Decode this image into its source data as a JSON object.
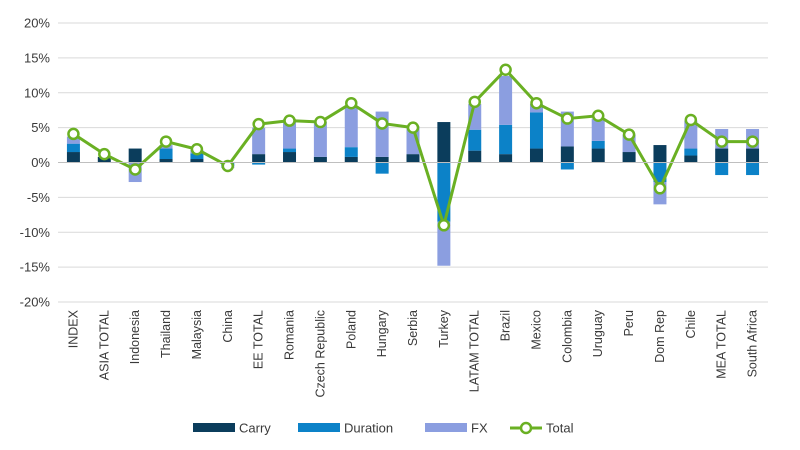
{
  "chart_data": {
    "type": "bar",
    "stacked": true,
    "categories": [
      "INDEX",
      "ASIA TOTAL",
      "Indonesia",
      "Thailand",
      "Malaysia",
      "China",
      "EE TOTAL",
      "Romania",
      "Czech Republic",
      "Poland",
      "Hungary",
      "Serbia",
      "Turkey",
      "LATAM TOTAL",
      "Brazil",
      "Mexico",
      "Colombia",
      "Uruguay",
      "Peru",
      "Dom Rep",
      "Chile",
      "MEA TOTAL",
      "South Africa"
    ],
    "series": [
      {
        "name": "Carry",
        "type": "bar",
        "color": "#0b3d5c",
        "values": [
          1.5,
          0.8,
          2.0,
          0.5,
          0.5,
          0.0,
          1.2,
          1.5,
          0.8,
          0.8,
          0.8,
          1.2,
          5.8,
          1.7,
          1.2,
          2.0,
          2.3,
          2.0,
          1.5,
          2.5,
          1.0,
          2.0,
          2.0
        ]
      },
      {
        "name": "Duration",
        "type": "bar",
        "color": "#0c82c8",
        "values": [
          1.2,
          0.0,
          0.0,
          1.5,
          0.8,
          -0.5,
          -0.3,
          0.5,
          0.0,
          1.4,
          -1.6,
          0.0,
          -8.5,
          3.0,
          4.2,
          5.2,
          -1.0,
          1.1,
          0.0,
          -2.8,
          1.0,
          -1.8,
          -1.8
        ]
      },
      {
        "name": "FX",
        "type": "bar",
        "color": "#8b9ee0",
        "values": [
          1.0,
          0.0,
          -2.8,
          0.5,
          0.5,
          -0.3,
          3.8,
          4.2,
          5.0,
          5.8,
          6.5,
          4.0,
          -6.3,
          3.7,
          7.0,
          1.2,
          5.0,
          3.2,
          2.5,
          -3.2,
          4.0,
          2.8,
          2.8
        ]
      },
      {
        "name": "Total",
        "type": "line",
        "color": "#6ab023",
        "values": [
          4.1,
          1.2,
          -1.0,
          3.0,
          1.9,
          -0.5,
          5.5,
          6.0,
          5.8,
          8.5,
          5.6,
          5.0,
          -9.0,
          8.7,
          13.3,
          8.5,
          6.3,
          6.7,
          4.0,
          -3.7,
          6.1,
          3.0,
          3.0
        ]
      }
    ],
    "ylim": [
      -20,
      20
    ],
    "yticks": [
      -20,
      -15,
      -10,
      -5,
      0,
      5,
      10,
      15,
      20
    ],
    "ytick_labels": [
      "-20%",
      "-15%",
      "-10%",
      "-5%",
      "0%",
      "5%",
      "10%",
      "15%",
      "20%"
    ],
    "grid": true,
    "legend_position": "bottom",
    "title": "",
    "xlabel": "",
    "ylabel": ""
  }
}
